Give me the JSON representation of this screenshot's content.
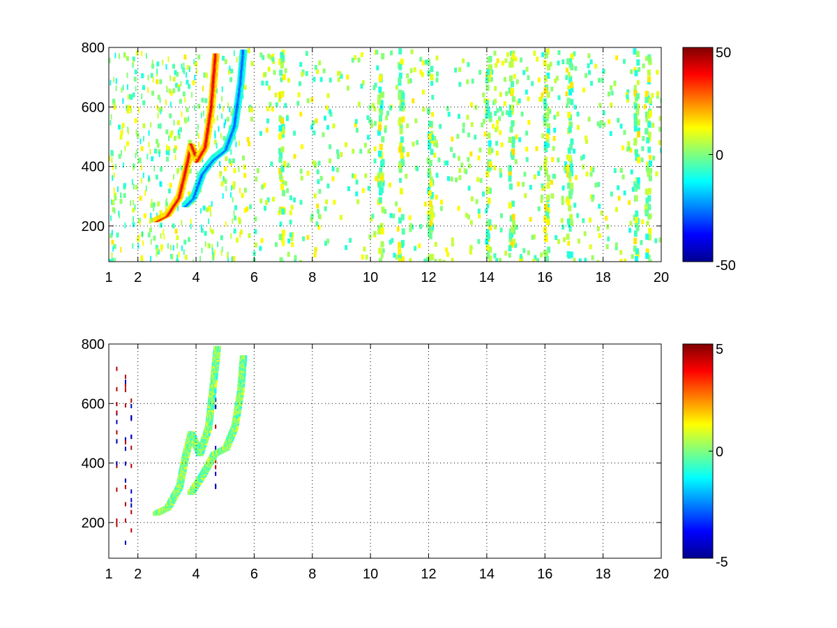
{
  "chart_data": [
    {
      "type": "heatmap",
      "title": "",
      "xlabel": "",
      "ylabel": "",
      "xlim": [
        1,
        20
      ],
      "ylim": [
        80,
        800
      ],
      "grid": true,
      "xticks": [
        1,
        2,
        4,
        6,
        8,
        10,
        12,
        14,
        16,
        18,
        20
      ],
      "xtick_labels": [
        "1",
        "2",
        "4",
        "6",
        "8",
        "10",
        "12",
        "14",
        "16",
        "18",
        "20"
      ],
      "yticks": [
        200,
        400,
        600,
        800
      ],
      "ytick_labels": [
        "200",
        "400",
        "600",
        "800"
      ],
      "colorbar": {
        "colormap": "jet",
        "clim": [
          -50,
          50
        ],
        "tick_labels": [
          "50",
          "0",
          "-50"
        ]
      },
      "description_ridges": [
        {
          "polarity": "positive",
          "points": [
            [
              2.6,
              220
            ],
            [
              3.0,
              240
            ],
            [
              3.4,
              300
            ],
            [
              3.6,
              380
            ],
            [
              3.8,
              470
            ],
            [
              4.0,
              420
            ],
            [
              4.3,
              470
            ],
            [
              4.5,
              600
            ],
            [
              4.65,
              780
            ]
          ]
        },
        {
          "polarity": "negative",
          "points": [
            [
              3.6,
              270
            ],
            [
              3.9,
              300
            ],
            [
              4.2,
              380
            ],
            [
              4.6,
              430
            ],
            [
              5.0,
              460
            ],
            [
              5.3,
              540
            ],
            [
              5.5,
              680
            ],
            [
              5.6,
              790
            ]
          ]
        }
      ],
      "noise_columns_x": [
        6.9,
        10.3,
        11.0,
        12.0,
        14.0,
        14.8,
        16.0,
        16.8,
        19.1,
        19.5
      ]
    },
    {
      "type": "heatmap",
      "title": "",
      "xlabel": "",
      "ylabel": "",
      "xlim": [
        1,
        20
      ],
      "ylim": [
        80,
        800
      ],
      "grid": true,
      "xticks": [
        1,
        2,
        4,
        6,
        8,
        10,
        12,
        14,
        16,
        18,
        20
      ],
      "xtick_labels": [
        "1",
        "2",
        "4",
        "6",
        "8",
        "10",
        "12",
        "14",
        "16",
        "18",
        "20"
      ],
      "yticks": [
        200,
        400,
        600,
        800
      ],
      "ytick_labels": [
        "200",
        "400",
        "600",
        "800"
      ],
      "colorbar": {
        "colormap": "jet",
        "clim": [
          -5,
          5
        ],
        "tick_labels": [
          "5",
          "0",
          "-5"
        ]
      },
      "description_ridges": [
        {
          "polarity": "near-zero",
          "points": [
            [
              2.6,
              230
            ],
            [
              3.0,
              250
            ],
            [
              3.4,
              320
            ],
            [
              3.6,
              420
            ],
            [
              3.8,
              500
            ],
            [
              4.1,
              430
            ],
            [
              4.4,
              520
            ],
            [
              4.6,
              700
            ],
            [
              4.7,
              790
            ]
          ]
        },
        {
          "polarity": "near-zero",
          "points": [
            [
              3.8,
              300
            ],
            [
              4.2,
              360
            ],
            [
              4.6,
              430
            ],
            [
              5.0,
              450
            ],
            [
              5.3,
              520
            ],
            [
              5.5,
              640
            ],
            [
              5.6,
              760
            ]
          ]
        }
      ],
      "spike_columns_x": [
        1.25,
        1.55,
        1.75,
        4.65
      ]
    }
  ]
}
